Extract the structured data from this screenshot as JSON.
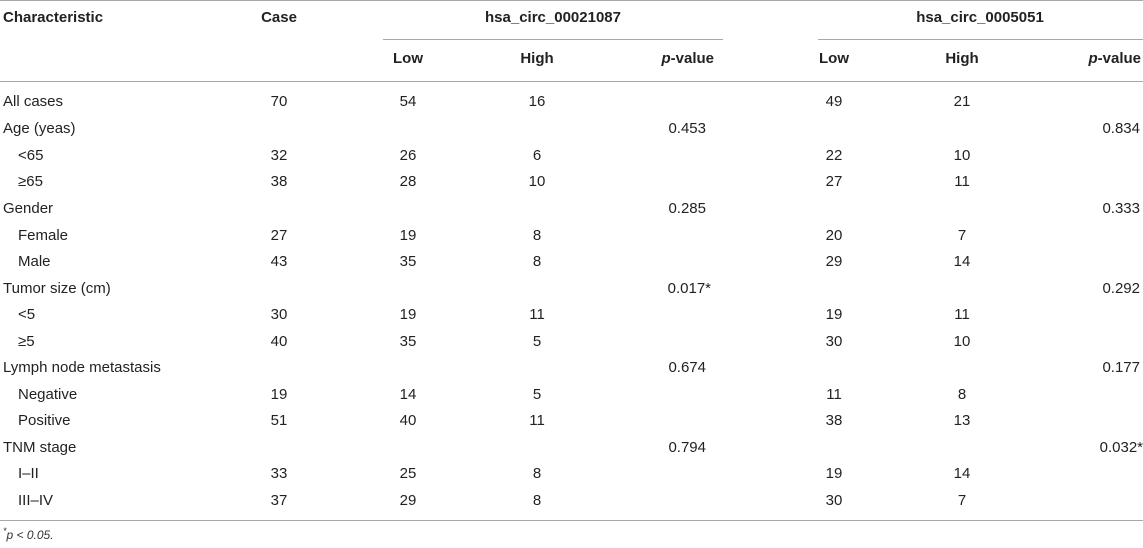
{
  "table": {
    "headers": {
      "characteristic": "Characteristic",
      "case": "Case",
      "gene1": "hsa_circ_00021087",
      "gene2": "hsa_circ_0005051",
      "low": "Low",
      "high": "High",
      "pvalue_p": "p",
      "pvalue_rest": "-value"
    },
    "rows": [
      {
        "label": "All cases",
        "indent": false,
        "case": "70",
        "g1_low": "54",
        "g1_high": "16",
        "g1_p": "",
        "g2_low": "49",
        "g2_high": "21",
        "g2_p": ""
      },
      {
        "label": "Age (yeas)",
        "indent": false,
        "case": "",
        "g1_low": "",
        "g1_high": "",
        "g1_p": "0.453",
        "g2_low": "",
        "g2_high": "",
        "g2_p": "0.834"
      },
      {
        "label": "<65",
        "indent": true,
        "case": "32",
        "g1_low": "26",
        "g1_high": "6",
        "g1_p": "",
        "g2_low": "22",
        "g2_high": "10",
        "g2_p": ""
      },
      {
        "label": "≥65",
        "indent": true,
        "case": "38",
        "g1_low": "28",
        "g1_high": "10",
        "g1_p": "",
        "g2_low": "27",
        "g2_high": "11",
        "g2_p": ""
      },
      {
        "label": "Gender",
        "indent": false,
        "case": "",
        "g1_low": "",
        "g1_high": "",
        "g1_p": "0.285",
        "g2_low": "",
        "g2_high": "",
        "g2_p": "0.333"
      },
      {
        "label": "Female",
        "indent": true,
        "case": "27",
        "g1_low": "19",
        "g1_high": "8",
        "g1_p": "",
        "g2_low": "20",
        "g2_high": "7",
        "g2_p": ""
      },
      {
        "label": "Male",
        "indent": true,
        "case": "43",
        "g1_low": "35",
        "g1_high": "8",
        "g1_p": "",
        "g2_low": "29",
        "g2_high": "14",
        "g2_p": ""
      },
      {
        "label": "Tumor size (cm)",
        "indent": false,
        "case": "",
        "g1_low": "",
        "g1_high": "",
        "g1_p": "0.017*",
        "g2_low": "",
        "g2_high": "",
        "g2_p": "0.292"
      },
      {
        "label": "<5",
        "indent": true,
        "case": "30",
        "g1_low": "19",
        "g1_high": "11",
        "g1_p": "",
        "g2_low": "19",
        "g2_high": "11",
        "g2_p": ""
      },
      {
        "label": "≥5",
        "indent": true,
        "case": "40",
        "g1_low": "35",
        "g1_high": "5",
        "g1_p": "",
        "g2_low": "30",
        "g2_high": "10",
        "g2_p": ""
      },
      {
        "label": "Lymph node metastasis",
        "indent": false,
        "case": "",
        "g1_low": "",
        "g1_high": "",
        "g1_p": "0.674",
        "g2_low": "",
        "g2_high": "",
        "g2_p": "0.177"
      },
      {
        "label": "Negative",
        "indent": true,
        "case": "19",
        "g1_low": "14",
        "g1_high": "5",
        "g1_p": "",
        "g2_low": "11",
        "g2_high": "8",
        "g2_p": ""
      },
      {
        "label": "Positive",
        "indent": true,
        "case": "51",
        "g1_low": "40",
        "g1_high": "11",
        "g1_p": "",
        "g2_low": "38",
        "g2_high": "13",
        "g2_p": ""
      },
      {
        "label": "TNM stage",
        "indent": false,
        "case": "",
        "g1_low": "",
        "g1_high": "",
        "g1_p": "0.794",
        "g2_low": "",
        "g2_high": "",
        "g2_p": "0.032*"
      },
      {
        "label": "I–II",
        "indent": true,
        "case": "33",
        "g1_low": "25",
        "g1_high": "8",
        "g1_p": "",
        "g2_low": "19",
        "g2_high": "14",
        "g2_p": ""
      },
      {
        "label": "III–IV",
        "indent": true,
        "case": "37",
        "g1_low": "29",
        "g1_high": "8",
        "g1_p": "",
        "g2_low": "30",
        "g2_high": "7",
        "g2_p": ""
      }
    ]
  },
  "footnote": {
    "mark": "*",
    "text": "p < 0.05."
  }
}
